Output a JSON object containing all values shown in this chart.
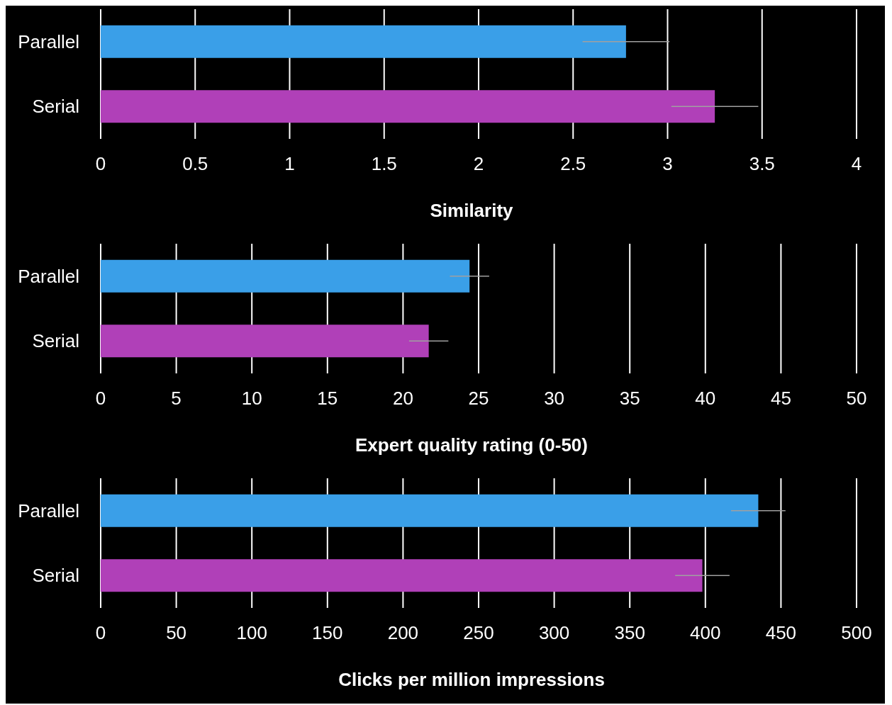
{
  "chart_data": [
    {
      "type": "bar",
      "orientation": "horizontal",
      "xlabel": "Similarity",
      "categories": [
        "Parallel",
        "Serial"
      ],
      "values": [
        2.78,
        3.25
      ],
      "errors": [
        0.23,
        0.23
      ],
      "colors": [
        "#3a9fe8",
        "#b040b8"
      ],
      "xlim": [
        0,
        4
      ],
      "xticks": [
        0,
        0.5,
        1,
        1.5,
        2,
        2.5,
        3,
        3.5,
        4
      ],
      "grid": "x"
    },
    {
      "type": "bar",
      "orientation": "horizontal",
      "xlabel": "Expert quality rating (0-50)",
      "categories": [
        "Parallel",
        "Serial"
      ],
      "values": [
        24.4,
        21.7
      ],
      "errors": [
        1.3,
        1.3
      ],
      "colors": [
        "#3a9fe8",
        "#b040b8"
      ],
      "xlim": [
        0,
        50
      ],
      "xticks": [
        0,
        5,
        10,
        15,
        20,
        25,
        30,
        35,
        40,
        45,
        50
      ],
      "grid": "x"
    },
    {
      "type": "bar",
      "orientation": "horizontal",
      "xlabel": "Clicks per million impressions",
      "categories": [
        "Parallel",
        "Serial"
      ],
      "values": [
        435,
        398
      ],
      "errors": [
        18,
        18
      ],
      "colors": [
        "#3a9fe8",
        "#b040b8"
      ],
      "xlim": [
        0,
        500
      ],
      "xticks": [
        0,
        50,
        100,
        150,
        200,
        250,
        300,
        350,
        400,
        450,
        500
      ],
      "grid": "x"
    }
  ]
}
